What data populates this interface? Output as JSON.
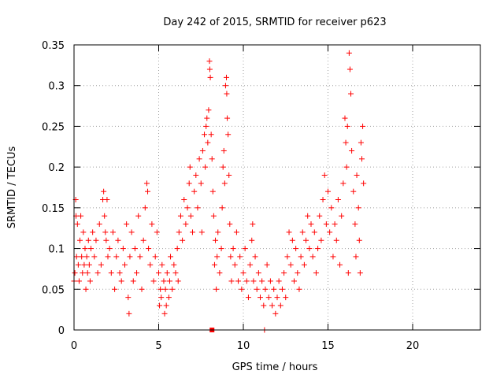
{
  "chart_data": {
    "type": "scatter",
    "title": "Day 242 of 2015, SRMTID for receiver p623",
    "xlabel": "GPS time / hours",
    "ylabel": "SRMTID / TECUs",
    "xlim": [
      0,
      24
    ],
    "ylim": [
      0,
      0.35
    ],
    "xticks": [
      0,
      5,
      10,
      15,
      20
    ],
    "xtick_labels": [
      "0",
      "5",
      "10",
      "15",
      "20"
    ],
    "yticks": [
      0,
      0.05,
      0.1,
      0.15,
      0.2,
      0.25,
      0.3,
      0.35
    ],
    "ytick_labels": [
      "0",
      "0.05",
      "0.1",
      "0.15",
      "0.2",
      "0.25",
      "0.3",
      "0.35"
    ],
    "grid": true,
    "marker": "plus",
    "color": "#ff0000",
    "series": [
      {
        "name": "SRMTID",
        "points": [
          [
            0.0,
            0.06
          ],
          [
            0.05,
            0.07
          ],
          [
            0.1,
            0.16
          ],
          [
            0.12,
            0.14
          ],
          [
            0.15,
            0.09
          ],
          [
            0.2,
            0.13
          ],
          [
            0.25,
            0.08
          ],
          [
            0.3,
            0.06
          ],
          [
            0.35,
            0.11
          ],
          [
            0.4,
            0.14
          ],
          [
            0.45,
            0.09
          ],
          [
            0.5,
            0.07
          ],
          [
            0.55,
            0.12
          ],
          [
            0.6,
            0.08
          ],
          [
            0.65,
            0.1
          ],
          [
            0.7,
            0.05
          ],
          [
            0.75,
            0.09
          ],
          [
            0.8,
            0.07
          ],
          [
            0.85,
            0.11
          ],
          [
            0.9,
            0.08
          ],
          [
            0.95,
            0.06
          ],
          [
            1.0,
            0.1
          ],
          [
            1.1,
            0.12
          ],
          [
            1.2,
            0.09
          ],
          [
            1.3,
            0.11
          ],
          [
            1.4,
            0.07
          ],
          [
            1.5,
            0.13
          ],
          [
            1.6,
            0.08
          ],
          [
            1.7,
            0.16
          ],
          [
            1.75,
            0.17
          ],
          [
            1.8,
            0.14
          ],
          [
            1.85,
            0.12
          ],
          [
            1.9,
            0.11
          ],
          [
            1.95,
            0.16
          ],
          [
            2.0,
            0.09
          ],
          [
            2.1,
            0.1
          ],
          [
            2.2,
            0.07
          ],
          [
            2.3,
            0.12
          ],
          [
            2.4,
            0.05
          ],
          [
            2.5,
            0.09
          ],
          [
            2.6,
            0.11
          ],
          [
            2.7,
            0.07
          ],
          [
            2.8,
            0.06
          ],
          [
            2.9,
            0.1
          ],
          [
            3.0,
            0.08
          ],
          [
            3.1,
            0.13
          ],
          [
            3.2,
            0.04
          ],
          [
            3.25,
            0.02
          ],
          [
            3.3,
            0.09
          ],
          [
            3.4,
            0.12
          ],
          [
            3.5,
            0.06
          ],
          [
            3.6,
            0.1
          ],
          [
            3.7,
            0.07
          ],
          [
            3.8,
            0.14
          ],
          [
            3.9,
            0.09
          ],
          [
            4.0,
            0.05
          ],
          [
            4.1,
            0.11
          ],
          [
            4.2,
            0.15
          ],
          [
            4.3,
            0.18
          ],
          [
            4.35,
            0.17
          ],
          [
            4.4,
            0.1
          ],
          [
            4.5,
            0.08
          ],
          [
            4.6,
            0.13
          ],
          [
            4.7,
            0.06
          ],
          [
            4.8,
            0.09
          ],
          [
            4.9,
            0.12
          ],
          [
            5.0,
            0.07
          ],
          [
            5.05,
            0.03
          ],
          [
            5.1,
            0.05
          ],
          [
            5.15,
            0.04
          ],
          [
            5.2,
            0.08
          ],
          [
            5.3,
            0.06
          ],
          [
            5.35,
            0.02
          ],
          [
            5.4,
            0.05
          ],
          [
            5.45,
            0.03
          ],
          [
            5.5,
            0.07
          ],
          [
            5.6,
            0.04
          ],
          [
            5.65,
            0.06
          ],
          [
            5.7,
            0.09
          ],
          [
            5.8,
            0.05
          ],
          [
            5.9,
            0.08
          ],
          [
            6.0,
            0.07
          ],
          [
            6.1,
            0.1
          ],
          [
            6.15,
            0.06
          ],
          [
            6.2,
            0.12
          ],
          [
            6.3,
            0.14
          ],
          [
            6.4,
            0.11
          ],
          [
            6.5,
            0.16
          ],
          [
            6.6,
            0.13
          ],
          [
            6.7,
            0.15
          ],
          [
            6.8,
            0.18
          ],
          [
            6.85,
            0.2
          ],
          [
            6.9,
            0.14
          ],
          [
            7.0,
            0.12
          ],
          [
            7.1,
            0.17
          ],
          [
            7.2,
            0.19
          ],
          [
            7.3,
            0.15
          ],
          [
            7.4,
            0.21
          ],
          [
            7.5,
            0.18
          ],
          [
            7.55,
            0.12
          ],
          [
            7.6,
            0.22
          ],
          [
            7.7,
            0.24
          ],
          [
            7.75,
            0.2
          ],
          [
            7.8,
            0.25
          ],
          [
            7.85,
            0.26
          ],
          [
            7.9,
            0.23
          ],
          [
            7.95,
            0.27
          ],
          [
            8.0,
            0.33
          ],
          [
            8.02,
            0.32
          ],
          [
            8.05,
            0.31
          ],
          [
            8.1,
            0.24
          ],
          [
            8.15,
            0.21
          ],
          [
            8.2,
            0.17
          ],
          [
            8.25,
            0.14
          ],
          [
            8.3,
            0.08
          ],
          [
            8.35,
            0.11
          ],
          [
            8.4,
            0.05
          ],
          [
            8.45,
            0.09
          ],
          [
            8.5,
            0.12
          ],
          [
            8.6,
            0.07
          ],
          [
            8.7,
            0.1
          ],
          [
            8.75,
            0.15
          ],
          [
            8.8,
            0.2
          ],
          [
            8.85,
            0.22
          ],
          [
            8.9,
            0.18
          ],
          [
            8.95,
            0.3
          ],
          [
            9.0,
            0.31
          ],
          [
            9.02,
            0.29
          ],
          [
            9.05,
            0.26
          ],
          [
            9.1,
            0.24
          ],
          [
            9.15,
            0.19
          ],
          [
            9.2,
            0.13
          ],
          [
            9.25,
            0.09
          ],
          [
            9.3,
            0.06
          ],
          [
            9.4,
            0.1
          ],
          [
            9.5,
            0.08
          ],
          [
            9.6,
            0.12
          ],
          [
            9.7,
            0.06
          ],
          [
            9.8,
            0.09
          ],
          [
            9.9,
            0.05
          ],
          [
            10.0,
            0.07
          ],
          [
            10.1,
            0.1
          ],
          [
            10.2,
            0.06
          ],
          [
            10.3,
            0.04
          ],
          [
            10.4,
            0.08
          ],
          [
            10.5,
            0.11
          ],
          [
            10.55,
            0.13
          ],
          [
            10.6,
            0.06
          ],
          [
            10.7,
            0.09
          ],
          [
            10.8,
            0.05
          ],
          [
            10.9,
            0.07
          ],
          [
            11.0,
            0.04
          ],
          [
            11.1,
            0.06
          ],
          [
            11.2,
            0.03
          ],
          [
            11.25,
            0.0
          ],
          [
            11.3,
            0.05
          ],
          [
            11.4,
            0.08
          ],
          [
            11.5,
            0.04
          ],
          [
            11.6,
            0.06
          ],
          [
            11.7,
            0.03
          ],
          [
            11.8,
            0.05
          ],
          [
            11.9,
            0.02
          ],
          [
            12.0,
            0.04
          ],
          [
            12.1,
            0.06
          ],
          [
            12.2,
            0.03
          ],
          [
            12.3,
            0.05
          ],
          [
            12.4,
            0.07
          ],
          [
            12.5,
            0.04
          ],
          [
            12.6,
            0.09
          ],
          [
            12.7,
            0.12
          ],
          [
            12.8,
            0.08
          ],
          [
            12.9,
            0.11
          ],
          [
            13.0,
            0.06
          ],
          [
            13.1,
            0.1
          ],
          [
            13.2,
            0.07
          ],
          [
            13.3,
            0.05
          ],
          [
            13.4,
            0.09
          ],
          [
            13.5,
            0.12
          ],
          [
            13.6,
            0.08
          ],
          [
            13.7,
            0.11
          ],
          [
            13.8,
            0.14
          ],
          [
            13.9,
            0.1
          ],
          [
            14.0,
            0.13
          ],
          [
            14.1,
            0.09
          ],
          [
            14.2,
            0.12
          ],
          [
            14.3,
            0.07
          ],
          [
            14.4,
            0.1
          ],
          [
            14.5,
            0.14
          ],
          [
            14.6,
            0.11
          ],
          [
            14.7,
            0.16
          ],
          [
            14.8,
            0.19
          ],
          [
            14.9,
            0.13
          ],
          [
            15.0,
            0.17
          ],
          [
            15.1,
            0.12
          ],
          [
            15.2,
            0.15
          ],
          [
            15.3,
            0.09
          ],
          [
            15.4,
            0.13
          ],
          [
            15.5,
            0.11
          ],
          [
            15.6,
            0.16
          ],
          [
            15.7,
            0.08
          ],
          [
            15.8,
            0.14
          ],
          [
            15.9,
            0.18
          ],
          [
            16.0,
            0.26
          ],
          [
            16.05,
            0.23
          ],
          [
            16.1,
            0.2
          ],
          [
            16.15,
            0.25
          ],
          [
            16.2,
            0.07
          ],
          [
            16.25,
            0.34
          ],
          [
            16.3,
            0.32
          ],
          [
            16.35,
            0.29
          ],
          [
            16.4,
            0.22
          ],
          [
            16.5,
            0.17
          ],
          [
            16.6,
            0.13
          ],
          [
            16.65,
            0.09
          ],
          [
            16.7,
            0.19
          ],
          [
            16.8,
            0.15
          ],
          [
            16.85,
            0.11
          ],
          [
            16.9,
            0.07
          ],
          [
            16.95,
            0.23
          ],
          [
            17.0,
            0.21
          ],
          [
            17.05,
            0.25
          ],
          [
            17.1,
            0.18
          ]
        ]
      }
    ],
    "annotations": [
      {
        "x": 8.15,
        "y": 0.0,
        "marker": "square"
      }
    ]
  }
}
